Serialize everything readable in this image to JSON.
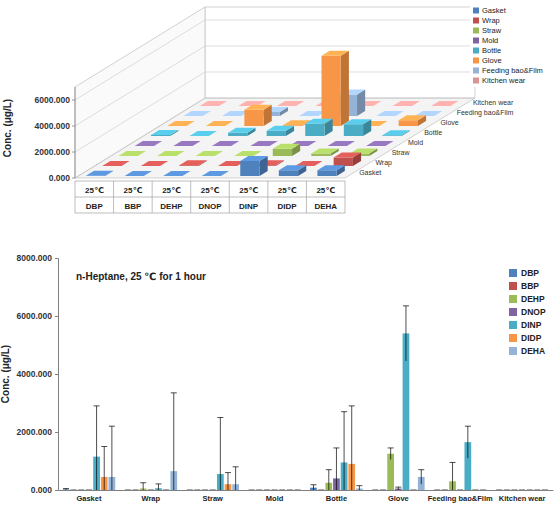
{
  "chart_data": [
    {
      "type": "bar3d",
      "y_label": "Conc. (μg/L)",
      "categories": [
        "DBP",
        "BBP",
        "DEHP",
        "DNOP",
        "DINP",
        "DIDP",
        "DEHA"
      ],
      "category_sublabels": [
        "25℃",
        "25℃",
        "25℃",
        "25℃",
        "25℃",
        "25℃",
        "25℃"
      ],
      "series": [
        {
          "name": "Gasket",
          "color": "#4F81BD",
          "values": [
            20,
            0,
            0,
            0,
            1150,
            450,
            450
          ]
        },
        {
          "name": "Wrap",
          "color": "#C0504D",
          "values": [
            0,
            0,
            50,
            0,
            60,
            0,
            650
          ]
        },
        {
          "name": "Straw",
          "color": "#9BBB59",
          "values": [
            0,
            0,
            0,
            0,
            550,
            200,
            200
          ]
        },
        {
          "name": "Mold",
          "color": "#8064A2",
          "values": [
            0,
            0,
            0,
            0,
            0,
            0,
            0
          ]
        },
        {
          "name": "Bottle",
          "color": "#4BACC6",
          "values": [
            80,
            0,
            250,
            400,
            950,
            900,
            50
          ]
        },
        {
          "name": "Glove",
          "color": "#F79646",
          "values": [
            0,
            0,
            1250,
            50,
            5400,
            0,
            450
          ]
        },
        {
          "name": "Feeding bao&Film",
          "color": "#95B3D7",
          "values": [
            0,
            0,
            300,
            0,
            1650,
            0,
            0
          ]
        },
        {
          "name": "Kitchen wear",
          "color": "#D99694",
          "values": [
            0,
            0,
            0,
            0,
            0,
            0,
            0
          ]
        }
      ],
      "ylim": [
        0,
        7000
      ],
      "yticks": [
        {
          "value": 0,
          "label": "0.000"
        },
        {
          "value": 2000,
          "label": "2000.000"
        },
        {
          "value": 4000,
          "label": "4000.000"
        },
        {
          "value": 6000,
          "label": "6000.000"
        }
      ],
      "grid": true,
      "legend": "upper-right"
    },
    {
      "type": "bar",
      "title": "n-Heptane, 25 ℃ for 1 hour",
      "y_label": "Conc. (μg/L)",
      "categories": [
        "Gasket",
        "Wrap",
        "Straw",
        "Mold",
        "Bottle",
        "Glove",
        "Feeding bao&Film",
        "Kitchen wear"
      ],
      "series": [
        {
          "name": "DBP",
          "color": "#4F81BD",
          "values": [
            20,
            0,
            0,
            0,
            80,
            0,
            0,
            0
          ],
          "errors": [
            30,
            0,
            0,
            0,
            100,
            0,
            0,
            0
          ]
        },
        {
          "name": "BBP",
          "color": "#C0504D",
          "values": [
            0,
            0,
            0,
            0,
            0,
            0,
            0,
            0
          ],
          "errors": [
            0,
            0,
            0,
            0,
            0,
            0,
            0,
            0
          ]
        },
        {
          "name": "DEHP",
          "color": "#9BBB59",
          "values": [
            0,
            50,
            0,
            0,
            250,
            1250,
            300,
            0
          ],
          "errors": [
            0,
            200,
            0,
            0,
            450,
            200,
            650,
            0
          ]
        },
        {
          "name": "DNOP",
          "color": "#8064A2",
          "values": [
            0,
            0,
            0,
            0,
            400,
            50,
            0,
            0
          ],
          "errors": [
            0,
            0,
            0,
            0,
            1050,
            50,
            0,
            0
          ]
        },
        {
          "name": "DINP",
          "color": "#4BACC6",
          "values": [
            1150,
            60,
            550,
            0,
            950,
            5400,
            1650,
            0
          ],
          "errors": [
            1750,
            150,
            1950,
            0,
            1750,
            950,
            550,
            0
          ]
        },
        {
          "name": "DIDP",
          "color": "#F79646",
          "values": [
            450,
            0,
            200,
            0,
            900,
            0,
            0,
            0
          ],
          "errors": [
            1050,
            0,
            400,
            0,
            2000,
            0,
            0,
            0
          ]
        },
        {
          "name": "DEHA",
          "color": "#95B3D7",
          "values": [
            450,
            650,
            200,
            0,
            50,
            450,
            0,
            0
          ],
          "errors": [
            1750,
            2700,
            600,
            0,
            100,
            250,
            0,
            0
          ]
        }
      ],
      "ylim": [
        0,
        8000
      ],
      "yticks": [
        {
          "value": 0,
          "label": "0.000"
        },
        {
          "value": 2000,
          "label": "2000.000"
        },
        {
          "value": 4000,
          "label": "4000.000"
        },
        {
          "value": 6000,
          "label": "6000.000"
        },
        {
          "value": 8000,
          "label": "8000.000"
        }
      ],
      "grid": false,
      "legend": "upper-right"
    }
  ]
}
